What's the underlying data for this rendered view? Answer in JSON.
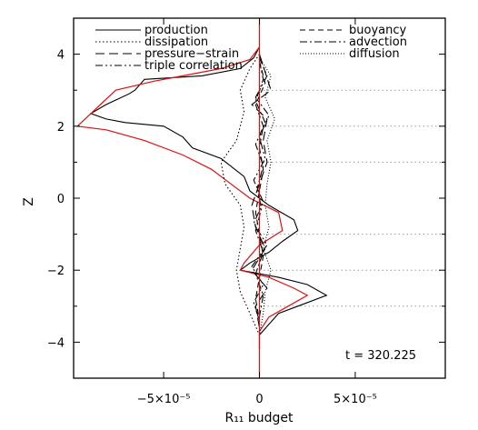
{
  "chart_data": {
    "type": "line",
    "xlabel": "R₁₁ budget",
    "ylabel": "Z",
    "xlim": [
      -9.7e-05,
      9.7e-05
    ],
    "ylim": [
      -5,
      5
    ],
    "xticks": [
      {
        "value": -5e-05,
        "label": "−5×10⁻⁵"
      },
      {
        "value": 0,
        "label": "0"
      },
      {
        "value": 5e-05,
        "label": "5×10⁻⁵"
      }
    ],
    "yticks": [
      {
        "value": 4,
        "label": "4"
      },
      {
        "value": 2,
        "label": "2"
      },
      {
        "value": 0,
        "label": "0"
      },
      {
        "value": -2,
        "label": "−2"
      },
      {
        "value": -4,
        "label": "−4"
      }
    ],
    "annotation": "t = 320.225",
    "legend_position": "top",
    "reference_levels": [
      3.0,
      2.0,
      1.0,
      -1.0,
      -2.0,
      -3.0
    ],
    "series": [
      {
        "name": "production",
        "style": "solid",
        "color": "#000000",
        "points": [
          [
            0,
            4.2
          ],
          [
            -3e-06,
            3.9
          ],
          [
            -1e-05,
            3.6
          ],
          [
            -3e-05,
            3.4
          ],
          [
            -6e-05,
            3.3
          ],
          [
            -6.5e-05,
            3.0
          ],
          [
            -6.8e-05,
            2.9
          ],
          [
            -8e-05,
            2.6
          ],
          [
            -8.8e-05,
            2.35
          ],
          [
            -8e-05,
            2.2
          ],
          [
            -7e-05,
            2.1
          ],
          [
            -5e-05,
            2.0
          ],
          [
            -4e-05,
            1.7
          ],
          [
            -3.5e-05,
            1.4
          ],
          [
            -2e-05,
            1.1
          ],
          [
            -8e-06,
            0.6
          ],
          [
            -5e-06,
            0.2
          ],
          [
            5e-06,
            -0.2
          ],
          [
            1.8e-05,
            -0.6
          ],
          [
            2e-05,
            -0.9
          ],
          [
            1.2e-05,
            -1.2
          ],
          [
            5e-06,
            -1.5
          ],
          [
            -5e-06,
            -1.8
          ],
          [
            -1e-05,
            -2.0
          ],
          [
            1e-05,
            -2.2
          ],
          [
            2.5e-05,
            -2.4
          ],
          [
            3.5e-05,
            -2.7
          ],
          [
            2e-05,
            -3.0
          ],
          [
            1e-05,
            -3.2
          ],
          [
            5e-06,
            -3.5
          ],
          [
            0,
            -3.8
          ],
          [
            0,
            -4.2
          ]
        ]
      },
      {
        "name": "production (red)",
        "style": "solid",
        "color": "#e01010",
        "points": [
          [
            0,
            4.2
          ],
          [
            -5e-06,
            3.85
          ],
          [
            -2e-05,
            3.6
          ],
          [
            -4e-05,
            3.4
          ],
          [
            -5.5e-05,
            3.25
          ],
          [
            -7.5e-05,
            3.0
          ],
          [
            -8.5e-05,
            2.5
          ],
          [
            -9.5e-05,
            2.0
          ],
          [
            -8e-05,
            1.9
          ],
          [
            -6e-05,
            1.6
          ],
          [
            -4e-05,
            1.2
          ],
          [
            -2.5e-05,
            0.8
          ],
          [
            -1.5e-05,
            0.4
          ],
          [
            -5e-06,
            0.0
          ],
          [
            1e-05,
            -0.4
          ],
          [
            1.2e-05,
            -0.9
          ],
          [
            0,
            -1.3
          ],
          [
            -8e-06,
            -1.8
          ],
          [
            -1e-05,
            -2.0
          ],
          [
            5e-06,
            -2.2
          ],
          [
            1.8e-05,
            -2.5
          ],
          [
            2.5e-05,
            -2.7
          ],
          [
            1.5e-05,
            -3.0
          ],
          [
            5e-06,
            -3.3
          ],
          [
            0,
            -3.7
          ],
          [
            0,
            -4.2
          ]
        ]
      },
      {
        "name": "dissipation",
        "style": "dotted",
        "color": "#000000",
        "points": [
          [
            0,
            4.0
          ],
          [
            -5e-06,
            3.6
          ],
          [
            -1e-05,
            3.0
          ],
          [
            -8e-06,
            2.4
          ],
          [
            -1.2e-05,
            1.6
          ],
          [
            -2e-05,
            1.0
          ],
          [
            -1.8e-05,
            0.4
          ],
          [
            -1e-05,
            -0.2
          ],
          [
            -8e-06,
            -0.8
          ],
          [
            -1e-05,
            -1.4
          ],
          [
            -1.2e-05,
            -2.0
          ],
          [
            -1e-05,
            -2.6
          ],
          [
            -5e-06,
            -3.2
          ],
          [
            0,
            -3.8
          ]
        ]
      },
      {
        "name": "pressure−strain",
        "style": "longdash",
        "color": "#000000",
        "points": [
          [
            0,
            4.0
          ],
          [
            3e-06,
            3.5
          ],
          [
            6e-06,
            3.0
          ],
          [
            -4e-06,
            2.6
          ],
          [
            4e-06,
            2.2
          ],
          [
            2e-06,
            1.6
          ],
          [
            4e-06,
            1.0
          ],
          [
            0,
            0.4
          ],
          [
            -4e-06,
            -0.2
          ],
          [
            -2e-06,
            -0.8
          ],
          [
            3e-06,
            -1.4
          ],
          [
            -4e-06,
            -2.0
          ],
          [
            4e-06,
            -2.5
          ],
          [
            -2e-06,
            -3.0
          ],
          [
            0,
            -3.6
          ]
        ]
      },
      {
        "name": "triple correlation",
        "style": "dashdotdot",
        "color": "#000000",
        "points": [
          [
            0,
            3.9
          ],
          [
            4e-06,
            3.4
          ],
          [
            -2e-06,
            2.8
          ],
          [
            5e-06,
            2.3
          ],
          [
            0,
            1.7
          ],
          [
            3e-06,
            1.1
          ],
          [
            -3e-06,
            0.5
          ],
          [
            2e-06,
            -0.1
          ],
          [
            -3e-06,
            -0.7
          ],
          [
            4e-06,
            -1.3
          ],
          [
            -4e-06,
            -1.9
          ],
          [
            2e-06,
            -2.4
          ],
          [
            -3e-06,
            -2.9
          ],
          [
            0,
            -3.4
          ]
        ]
      },
      {
        "name": "buoyancy",
        "style": "dashed",
        "color": "#000000",
        "points": [
          [
            0,
            3.8
          ],
          [
            3e-06,
            3.2
          ],
          [
            -2e-06,
            2.6
          ],
          [
            2e-06,
            2.0
          ],
          [
            0,
            1.4
          ],
          [
            2e-06,
            0.8
          ],
          [
            0,
            0.2
          ],
          [
            -2e-06,
            -0.4
          ],
          [
            0,
            -1.0
          ],
          [
            2e-06,
            -1.6
          ],
          [
            0,
            -2.2
          ],
          [
            -2e-06,
            -2.8
          ],
          [
            0,
            -3.4
          ]
        ]
      },
      {
        "name": "advection",
        "style": "dashdot",
        "color": "#000000",
        "points": [
          [
            0,
            3.8
          ],
          [
            2e-06,
            3.3
          ],
          [
            -2e-06,
            2.7
          ],
          [
            3e-06,
            2.1
          ],
          [
            -2e-06,
            1.5
          ],
          [
            2e-06,
            0.9
          ],
          [
            -1e-06,
            0.3
          ],
          [
            1e-06,
            -0.3
          ],
          [
            -2e-06,
            -0.9
          ],
          [
            2e-06,
            -1.5
          ],
          [
            -2e-06,
            -2.1
          ],
          [
            2e-06,
            -2.7
          ],
          [
            0,
            -3.3
          ]
        ]
      },
      {
        "name": "diffusion",
        "style": "finedot",
        "color": "#000000",
        "points": [
          [
            0,
            3.9
          ],
          [
            6e-06,
            3.4
          ],
          [
            3e-06,
            2.8
          ],
          [
            8e-06,
            2.2
          ],
          [
            4e-06,
            1.6
          ],
          [
            6e-06,
            1.0
          ],
          [
            4e-06,
            0.4
          ],
          [
            3e-06,
            -0.2
          ],
          [
            5e-06,
            -0.8
          ],
          [
            2e-06,
            -1.4
          ],
          [
            6e-06,
            -2.0
          ],
          [
            3e-06,
            -2.6
          ],
          [
            2e-06,
            -3.2
          ],
          [
            0,
            -3.8
          ]
        ]
      }
    ],
    "legend_left": [
      "production",
      "dissipation",
      "pressure−strain",
      "triple correlation"
    ],
    "legend_right": [
      "buoyancy",
      "advection",
      "diffusion"
    ]
  }
}
